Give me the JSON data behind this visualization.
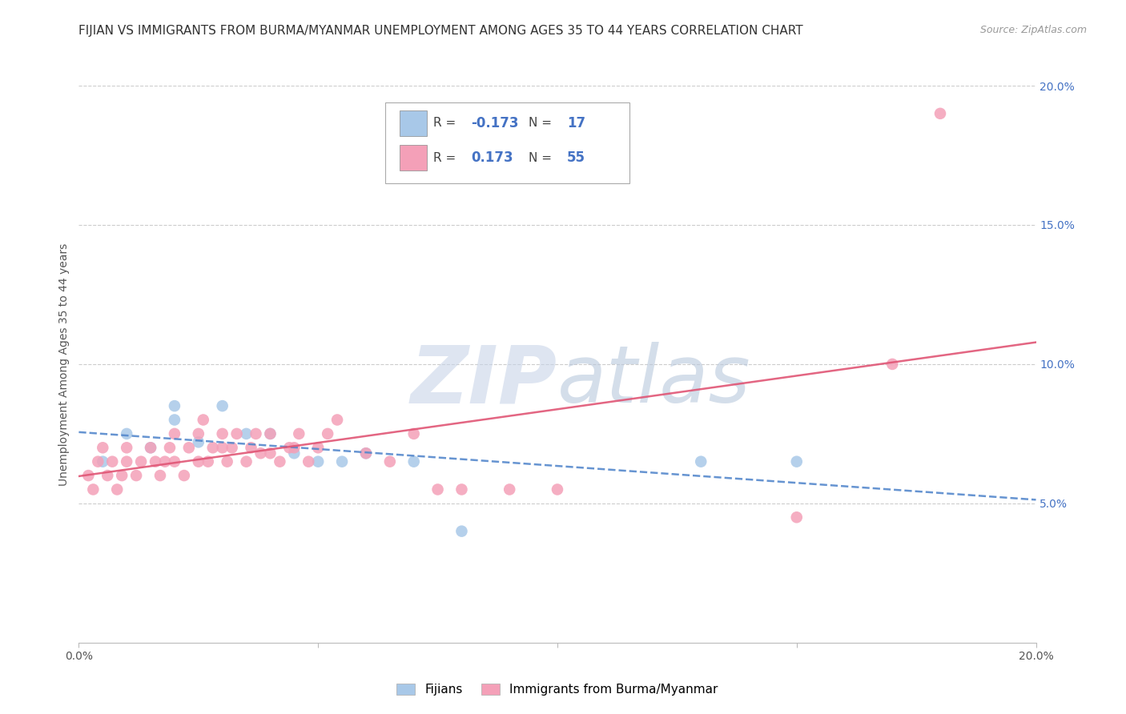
{
  "title": "FIJIAN VS IMMIGRANTS FROM BURMA/MYANMAR UNEMPLOYMENT AMONG AGES 35 TO 44 YEARS CORRELATION CHART",
  "source": "Source: ZipAtlas.com",
  "ylabel": "Unemployment Among Ages 35 to 44 years",
  "xlim": [
    0.0,
    0.2
  ],
  "ylim": [
    0.0,
    0.2
  ],
  "xticks": [
    0.0,
    0.05,
    0.1,
    0.15,
    0.2
  ],
  "yticks": [
    0.05,
    0.1,
    0.15,
    0.2
  ],
  "xticklabels": [
    "0.0%",
    "",
    "",
    "",
    "20.0%"
  ],
  "yticklabels": [
    "5.0%",
    "10.0%",
    "15.0%",
    "20.0%"
  ],
  "background_color": "#ffffff",
  "grid_color": "#cccccc",
  "legend_entries": [
    {
      "label": "Fijians",
      "color": "#a8c8e8"
    },
    {
      "label": "Immigrants from Burma/Myanmar",
      "color": "#f4a0b8"
    }
  ],
  "fijians": {
    "name": "Fijians",
    "color": "#a8c8e8",
    "R": -0.173,
    "N": 17,
    "line_color": "#5588cc",
    "line_style": "--",
    "points_x": [
      0.005,
      0.01,
      0.015,
      0.02,
      0.02,
      0.025,
      0.03,
      0.035,
      0.04,
      0.045,
      0.05,
      0.055,
      0.06,
      0.07,
      0.08,
      0.13,
      0.15
    ],
    "points_y": [
      0.065,
      0.075,
      0.07,
      0.08,
      0.085,
      0.072,
      0.085,
      0.075,
      0.075,
      0.068,
      0.065,
      0.065,
      0.068,
      0.065,
      0.04,
      0.065,
      0.065
    ]
  },
  "burma": {
    "name": "Immigrants from Burma/Myanmar",
    "color": "#f4a0b8",
    "R": 0.173,
    "N": 55,
    "line_color": "#e05575",
    "line_style": "-",
    "points_x": [
      0.002,
      0.003,
      0.004,
      0.005,
      0.006,
      0.007,
      0.008,
      0.009,
      0.01,
      0.01,
      0.012,
      0.013,
      0.015,
      0.016,
      0.017,
      0.018,
      0.019,
      0.02,
      0.02,
      0.022,
      0.023,
      0.025,
      0.025,
      0.026,
      0.027,
      0.028,
      0.03,
      0.03,
      0.031,
      0.032,
      0.033,
      0.035,
      0.036,
      0.037,
      0.038,
      0.04,
      0.04,
      0.042,
      0.044,
      0.045,
      0.046,
      0.048,
      0.05,
      0.052,
      0.054,
      0.06,
      0.065,
      0.07,
      0.075,
      0.08,
      0.09,
      0.1,
      0.15,
      0.17,
      0.18
    ],
    "points_y": [
      0.06,
      0.055,
      0.065,
      0.07,
      0.06,
      0.065,
      0.055,
      0.06,
      0.065,
      0.07,
      0.06,
      0.065,
      0.07,
      0.065,
      0.06,
      0.065,
      0.07,
      0.065,
      0.075,
      0.06,
      0.07,
      0.065,
      0.075,
      0.08,
      0.065,
      0.07,
      0.07,
      0.075,
      0.065,
      0.07,
      0.075,
      0.065,
      0.07,
      0.075,
      0.068,
      0.075,
      0.068,
      0.065,
      0.07,
      0.07,
      0.075,
      0.065,
      0.07,
      0.075,
      0.08,
      0.068,
      0.065,
      0.075,
      0.055,
      0.055,
      0.055,
      0.055,
      0.045,
      0.1,
      0.19
    ]
  },
  "title_fontsize": 11,
  "axis_label_fontsize": 10,
  "tick_fontsize": 10,
  "legend_fontsize": 11,
  "source_fontsize": 9
}
